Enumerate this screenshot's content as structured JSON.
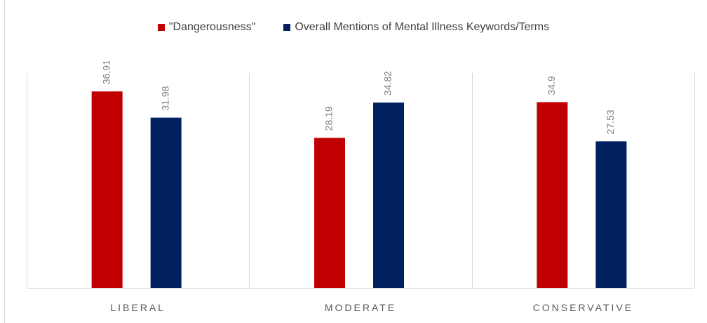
{
  "chart_data": {
    "type": "bar",
    "title": "",
    "categories": [
      "LIBERAL",
      "MODERATE",
      "CONSERVATIVE"
    ],
    "series": [
      {
        "name": "\"Dangerousness\"",
        "values": [
          36.91,
          28.19,
          34.9
        ],
        "labels": [
          "36.91",
          "28.19",
          "34.9"
        ],
        "color": "#c00000"
      },
      {
        "name": "Overall Mentions of Mental Illness Keywords/Terms",
        "values": [
          31.98,
          34.82,
          27.53
        ],
        "labels": [
          "31.98",
          "34.82",
          "27.53"
        ],
        "color": "#002060"
      }
    ],
    "ylim": [
      0,
      40
    ],
    "xlabel": "",
    "ylabel": "",
    "legend_position": "top",
    "grid": false
  }
}
